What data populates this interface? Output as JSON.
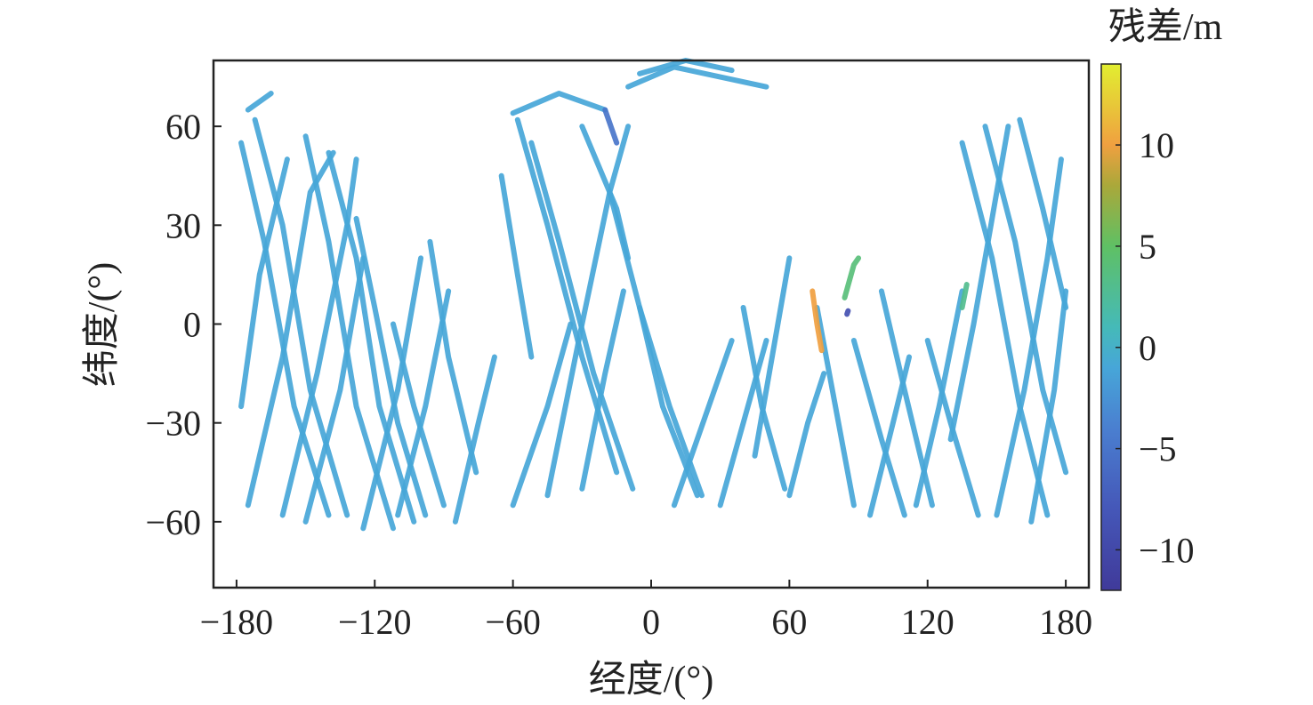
{
  "chart_data": {
    "type": "scatter",
    "xlabel": "经度/(°)",
    "ylabel": "纬度/(°)",
    "colorbar_label": "残差/m",
    "xlim": [
      -190,
      190
    ],
    "ylim": [
      -80,
      80
    ],
    "xticks": [
      -180,
      -120,
      -60,
      0,
      60,
      120,
      180
    ],
    "xtick_labels": [
      "−180",
      "−120",
      "−60",
      "0",
      "60",
      "120",
      "180"
    ],
    "yticks": [
      60,
      30,
      0,
      -30,
      -60
    ],
    "ytick_labels": [
      "60",
      "30",
      "0",
      "−30",
      "−60"
    ],
    "clim": [
      -12,
      14
    ],
    "cticks": [
      10,
      5,
      0,
      -5,
      -10
    ],
    "ctick_labels": [
      "10",
      "5",
      "0",
      "−5",
      "−10"
    ],
    "colormap": [
      {
        "v": -12,
        "c": "#403a9a"
      },
      {
        "v": -8,
        "c": "#4557b8"
      },
      {
        "v": -4,
        "c": "#4a7fd0"
      },
      {
        "v": -1,
        "c": "#47a6d8"
      },
      {
        "v": 1,
        "c": "#45bab8"
      },
      {
        "v": 5,
        "c": "#5fc064"
      },
      {
        "v": 8,
        "c": "#aaa83a"
      },
      {
        "v": 10,
        "c": "#f0a040"
      },
      {
        "v": 12,
        "c": "#e8c838"
      },
      {
        "v": 14,
        "c": "#e2ee30"
      }
    ],
    "grid": false,
    "tracks": [
      {
        "pts": [
          [
            -178,
            55
          ],
          [
            -168,
            25
          ],
          [
            -155,
            -25
          ],
          [
            -140,
            -58
          ]
        ],
        "r": -1
      },
      {
        "pts": [
          [
            -172,
            62
          ],
          [
            -160,
            30
          ],
          [
            -148,
            -20
          ],
          [
            -132,
            -58
          ]
        ],
        "r": -1
      },
      {
        "pts": [
          [
            -150,
            57
          ],
          [
            -140,
            25
          ],
          [
            -128,
            -25
          ],
          [
            -112,
            -62
          ]
        ],
        "r": -1
      },
      {
        "pts": [
          [
            -140,
            52
          ],
          [
            -128,
            20
          ],
          [
            -118,
            -25
          ],
          [
            -103,
            -60
          ]
        ],
        "r": -1
      },
      {
        "pts": [
          [
            -128,
            32
          ],
          [
            -120,
            5
          ],
          [
            -110,
            -30
          ],
          [
            -98,
            -58
          ]
        ],
        "r": -1
      },
      {
        "pts": [
          [
            -112,
            0
          ],
          [
            -103,
            -25
          ],
          [
            -90,
            -55
          ]
        ],
        "r": -1
      },
      {
        "pts": [
          [
            -96,
            25
          ],
          [
            -88,
            -10
          ],
          [
            -76,
            -45
          ]
        ],
        "r": -1
      },
      {
        "pts": [
          [
            -58,
            62
          ],
          [
            -45,
            30
          ],
          [
            -30,
            -10
          ],
          [
            -15,
            -45
          ]
        ],
        "r": -1
      },
      {
        "pts": [
          [
            -52,
            55
          ],
          [
            -40,
            25
          ],
          [
            -25,
            -15
          ],
          [
            -8,
            -50
          ]
        ],
        "r": -1
      },
      {
        "pts": [
          [
            -65,
            45
          ],
          [
            -58,
            15
          ],
          [
            -52,
            -10
          ]
        ],
        "r": -1
      },
      {
        "pts": [
          [
            -18,
            40
          ],
          [
            -5,
            5
          ],
          [
            5,
            -25
          ],
          [
            20,
            -52
          ]
        ],
        "r": -1
      },
      {
        "pts": [
          [
            -5,
            5
          ],
          [
            8,
            -25
          ],
          [
            22,
            -52
          ]
        ],
        "r": -1
      },
      {
        "pts": [
          [
            40,
            5
          ],
          [
            48,
            -25
          ],
          [
            58,
            -50
          ]
        ],
        "r": -1
      },
      {
        "pts": [
          [
            72,
            5
          ],
          [
            80,
            -25
          ],
          [
            88,
            -55
          ]
        ],
        "r": -1
      },
      {
        "pts": [
          [
            88,
            -5
          ],
          [
            100,
            -35
          ],
          [
            110,
            -58
          ]
        ],
        "r": -1
      },
      {
        "pts": [
          [
            100,
            10
          ],
          [
            110,
            -20
          ],
          [
            122,
            -55
          ]
        ],
        "r": -1
      },
      {
        "pts": [
          [
            135,
            55
          ],
          [
            148,
            20
          ],
          [
            160,
            -25
          ],
          [
            172,
            -58
          ]
        ],
        "r": -1
      },
      {
        "pts": [
          [
            145,
            60
          ],
          [
            158,
            25
          ],
          [
            170,
            -20
          ],
          [
            180,
            -45
          ]
        ],
        "r": -1
      },
      {
        "pts": [
          [
            160,
            62
          ],
          [
            170,
            35
          ],
          [
            180,
            5
          ]
        ],
        "r": -1
      },
      {
        "pts": [
          [
            120,
            -5
          ],
          [
            130,
            -30
          ],
          [
            142,
            -58
          ]
        ],
        "r": -1
      },
      {
        "pts": [
          [
            -30,
            60
          ],
          [
            -15,
            35
          ],
          [
            -10,
            20
          ]
        ],
        "r": -1
      },
      {
        "pts": [
          [
            -178,
            -25
          ],
          [
            -170,
            15
          ],
          [
            -158,
            50
          ]
        ],
        "r": -1
      },
      {
        "pts": [
          [
            -175,
            -55
          ],
          [
            -160,
            -10
          ],
          [
            -148,
            40
          ],
          [
            -138,
            52
          ]
        ],
        "r": -1
      },
      {
        "pts": [
          [
            -160,
            -58
          ],
          [
            -145,
            -15
          ],
          [
            -132,
            30
          ],
          [
            -128,
            50
          ]
        ],
        "r": -1
      },
      {
        "pts": [
          [
            -150,
            -60
          ],
          [
            -135,
            -20
          ],
          [
            -125,
            20
          ]
        ],
        "r": -1
      },
      {
        "pts": [
          [
            -125,
            -62
          ],
          [
            -110,
            -20
          ],
          [
            -100,
            20
          ]
        ],
        "r": -1
      },
      {
        "pts": [
          [
            -110,
            -58
          ],
          [
            -98,
            -25
          ],
          [
            -88,
            10
          ]
        ],
        "r": -1
      },
      {
        "pts": [
          [
            -85,
            -60
          ],
          [
            -75,
            -30
          ],
          [
            -68,
            -10
          ]
        ],
        "r": -1
      },
      {
        "pts": [
          [
            -45,
            -52
          ],
          [
            -30,
            0
          ],
          [
            -18,
            40
          ],
          [
            -10,
            60
          ]
        ],
        "r": -1
      },
      {
        "pts": [
          [
            -60,
            -55
          ],
          [
            -45,
            -25
          ],
          [
            -35,
            0
          ]
        ],
        "r": -1
      },
      {
        "pts": [
          [
            -30,
            -50
          ],
          [
            -20,
            -15
          ],
          [
            -12,
            10
          ]
        ],
        "r": -1
      },
      {
        "pts": [
          [
            10,
            -55
          ],
          [
            25,
            -25
          ],
          [
            35,
            -5
          ]
        ],
        "r": -1
      },
      {
        "pts": [
          [
            30,
            -55
          ],
          [
            42,
            -25
          ],
          [
            50,
            -5
          ]
        ],
        "r": -1
      },
      {
        "pts": [
          [
            45,
            -40
          ],
          [
            55,
            0
          ],
          [
            60,
            20
          ]
        ],
        "r": -1
      },
      {
        "pts": [
          [
            60,
            -52
          ],
          [
            68,
            -30
          ],
          [
            75,
            -15
          ]
        ],
        "r": -1
      },
      {
        "pts": [
          [
            95,
            -58
          ],
          [
            105,
            -30
          ],
          [
            112,
            -10
          ]
        ],
        "r": -1
      },
      {
        "pts": [
          [
            115,
            -55
          ],
          [
            125,
            -25
          ],
          [
            135,
            10
          ]
        ],
        "r": -1
      },
      {
        "pts": [
          [
            130,
            -35
          ],
          [
            140,
            0
          ],
          [
            150,
            40
          ],
          [
            155,
            60
          ]
        ],
        "r": -1
      },
      {
        "pts": [
          [
            150,
            -58
          ],
          [
            162,
            -20
          ],
          [
            172,
            20
          ],
          [
            178,
            50
          ]
        ],
        "r": -1
      },
      {
        "pts": [
          [
            165,
            -60
          ],
          [
            175,
            -20
          ],
          [
            180,
            10
          ]
        ],
        "r": -1
      },
      {
        "pts": [
          [
            -10,
            72
          ],
          [
            10,
            78
          ],
          [
            30,
            75
          ],
          [
            50,
            72
          ]
        ],
        "r": -1
      },
      {
        "pts": [
          [
            -5,
            76
          ],
          [
            15,
            80
          ],
          [
            35,
            77
          ]
        ],
        "r": -1
      },
      {
        "pts": [
          [
            -60,
            64
          ],
          [
            -40,
            70
          ],
          [
            -20,
            65
          ]
        ],
        "r": -1
      },
      {
        "pts": [
          [
            -175,
            65
          ],
          [
            -165,
            70
          ]
        ],
        "r": -1
      },
      {
        "pts": [
          [
            70,
            10
          ],
          [
            72,
            0
          ],
          [
            74,
            -8
          ]
        ],
        "r": 10
      },
      {
        "pts": [
          [
            84,
            8
          ],
          [
            88,
            18
          ],
          [
            90,
            20
          ]
        ],
        "r": 4
      },
      {
        "pts": [
          [
            85,
            3
          ],
          [
            85.5,
            4
          ]
        ],
        "r": -9
      },
      {
        "pts": [
          [
            -20,
            65
          ],
          [
            -15,
            55
          ]
        ],
        "r": -5
      },
      {
        "pts": [
          [
            135,
            5
          ],
          [
            137,
            12
          ]
        ],
        "r": 3
      }
    ]
  }
}
